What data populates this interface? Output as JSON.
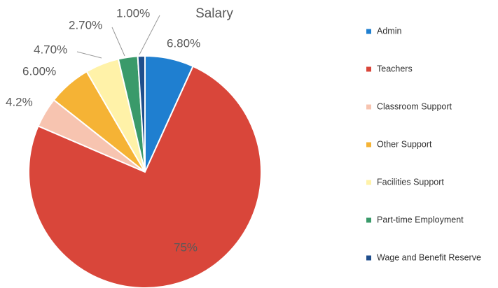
{
  "chart_data": {
    "type": "pie",
    "title": "Salary",
    "categories": [
      "Admin",
      "Teachers",
      "Classroom Support",
      "Other Support",
      "Facilities Support",
      "Part-time Employment",
      "Wage and Benefit Reserve"
    ],
    "values": [
      6.8,
      75,
      4.2,
      6.0,
      4.7,
      2.7,
      1.0
    ],
    "value_labels": [
      "6.80%",
      "75%",
      "4.2%",
      "6.00%",
      "4.70%",
      "2.70%",
      "1.00%"
    ],
    "colors": [
      "#1f7fd0",
      "#d9463a",
      "#f7c4b0",
      "#f5b335",
      "#fff2a8",
      "#3a9a6a",
      "#1f4e8c"
    ],
    "legend": "right"
  }
}
